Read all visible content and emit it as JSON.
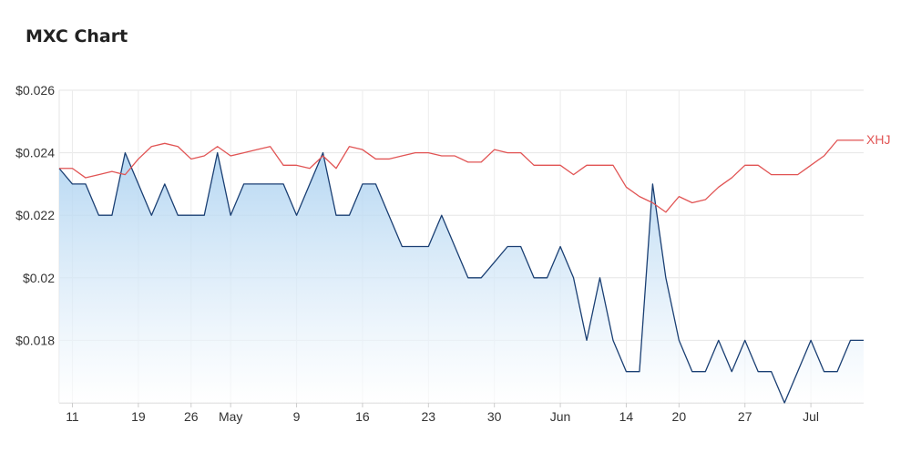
{
  "title": "MXC Chart",
  "chart_data": {
    "type": "line",
    "title": "MXC Chart",
    "ylim": [
      0.016,
      0.026
    ],
    "yticks": [
      "$0.026",
      "$0.024",
      "$0.022",
      "$0.02",
      "$0.018"
    ],
    "ytick_values": [
      0.026,
      0.024,
      0.022,
      0.02,
      0.018
    ],
    "xticks": [
      "11",
      "19",
      "26",
      "May",
      "9",
      "16",
      "23",
      "30",
      "Jun",
      "14",
      "20",
      "27",
      "Jul"
    ],
    "xtick_index": [
      1,
      6,
      10,
      13,
      18,
      23,
      28,
      33,
      38,
      43,
      47,
      52,
      57
    ],
    "grid": true,
    "series": [
      {
        "name": "MXC",
        "color": "#1a3f73",
        "fill": "area",
        "values": [
          0.0235,
          0.023,
          0.023,
          0.022,
          0.022,
          0.024,
          0.023,
          0.022,
          0.023,
          0.022,
          0.022,
          0.022,
          0.024,
          0.022,
          0.023,
          0.023,
          0.023,
          0.023,
          0.022,
          0.023,
          0.024,
          0.022,
          0.022,
          0.023,
          0.023,
          0.022,
          0.021,
          0.021,
          0.021,
          0.022,
          0.021,
          0.02,
          0.02,
          0.0205,
          0.021,
          0.021,
          0.02,
          0.02,
          0.021,
          0.02,
          0.018,
          0.02,
          0.018,
          0.017,
          0.017,
          0.023,
          0.02,
          0.018,
          0.017,
          0.017,
          0.018,
          0.017,
          0.018,
          0.017,
          0.017,
          0.016,
          0.017,
          0.018,
          0.017,
          0.017,
          0.018,
          0.018
        ]
      },
      {
        "name": "XHJ",
        "color": "#e15454",
        "fill": "none",
        "values": [
          0.0235,
          0.0235,
          0.0232,
          0.0233,
          0.0234,
          0.0233,
          0.0238,
          0.0242,
          0.0243,
          0.0242,
          0.0238,
          0.0239,
          0.0242,
          0.0239,
          0.024,
          0.0241,
          0.0242,
          0.0236,
          0.0236,
          0.0235,
          0.0239,
          0.0235,
          0.0242,
          0.0241,
          0.0238,
          0.0238,
          0.0239,
          0.024,
          0.024,
          0.0239,
          0.0239,
          0.0237,
          0.0237,
          0.0241,
          0.024,
          0.024,
          0.0236,
          0.0236,
          0.0236,
          0.0233,
          0.0236,
          0.0236,
          0.0236,
          0.0229,
          0.0226,
          0.0224,
          0.0221,
          0.0226,
          0.0224,
          0.0225,
          0.0229,
          0.0232,
          0.0236,
          0.0236,
          0.0233,
          0.0233,
          0.0233,
          0.0236,
          0.0239,
          0.0244,
          0.0244,
          0.0244
        ]
      }
    ],
    "legend": {
      "label": "XHJ",
      "placement": "right-end"
    }
  }
}
